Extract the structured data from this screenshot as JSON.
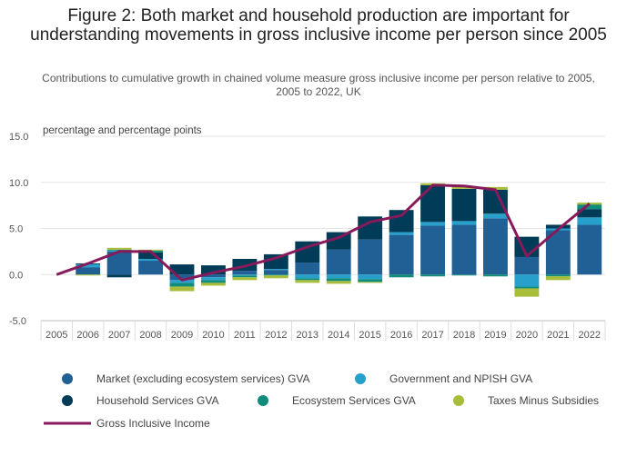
{
  "chart_data": {
    "type": "bar",
    "title": "Figure 2: Both market and household production are important for understanding movements in gross inclusive income per person since 2005",
    "subtitle": "Contributions to cumulative growth in chained volume measure gross inclusive income per person relative to 2005, 2005 to 2022, UK",
    "ylabel": "percentage and percentage points",
    "xlabel": "",
    "ylim": [
      -5,
      15
    ],
    "yticks": [
      "15.0",
      "10.0",
      "5.0",
      "0.0",
      "-5.0"
    ],
    "ytick_values": [
      15,
      10,
      5,
      0,
      -5
    ],
    "categories": [
      "2005",
      "2006",
      "2007",
      "2008",
      "2009",
      "2010",
      "2011",
      "2012",
      "2013",
      "2014",
      "2015",
      "2016",
      "2017",
      "2018",
      "2019",
      "2020",
      "2021",
      "2022"
    ],
    "stacked": true,
    "grid": true,
    "legend_position": "bottom",
    "series": [
      {
        "name": "Market (excluding ecosystem services) GVA",
        "kind": "bar",
        "color": "#206095",
        "values": [
          0,
          0.8,
          2.5,
          1.5,
          -0.6,
          -0.3,
          0.4,
          0.5,
          1.3,
          2.7,
          3.8,
          4.3,
          5.3,
          5.4,
          6.1,
          1.9,
          4.8,
          5.4
        ]
      },
      {
        "name": "Government and NPISH GVA",
        "kind": "bar",
        "color": "#27A0CC",
        "values": [
          0,
          0.3,
          0.1,
          0.2,
          -0.3,
          -0.3,
          -0.1,
          0.1,
          -0.4,
          -0.4,
          -0.5,
          0.3,
          0.4,
          0.4,
          0.5,
          -1.3,
          0.2,
          0.8
        ]
      },
      {
        "name": "Household Services GVA",
        "kind": "bar",
        "color": "#003C57",
        "values": [
          0,
          0.1,
          -0.3,
          0.7,
          1.1,
          1.0,
          1.3,
          1.6,
          2.3,
          1.9,
          2.5,
          2.4,
          4.0,
          3.5,
          2.6,
          2.2,
          0.4,
          0.9
        ]
      },
      {
        "name": "Ecosystem Services GVA",
        "kind": "bar",
        "color": "#118C7B",
        "values": [
          0,
          0,
          0.1,
          0.2,
          -0.4,
          -0.3,
          -0.2,
          -0.1,
          -0.2,
          -0.3,
          -0.3,
          -0.3,
          -0.2,
          -0.1,
          -0.2,
          -0.2,
          -0.2,
          0.5
        ]
      },
      {
        "name": "Taxes Minus Subsidies",
        "kind": "bar",
        "color": "#A8BD3A",
        "values": [
          0,
          -0.1,
          0.2,
          0.1,
          -0.5,
          -0.3,
          -0.3,
          -0.3,
          -0.3,
          -0.3,
          -0.1,
          0,
          0.2,
          0.3,
          0.3,
          -0.9,
          -0.4,
          0.2
        ]
      },
      {
        "name": "Gross Inclusive Income",
        "kind": "line",
        "color": "#871A5B",
        "values": [
          0,
          1.2,
          2.5,
          2.5,
          -0.6,
          0.2,
          0.9,
          1.8,
          3.0,
          4.0,
          5.7,
          6.4,
          9.7,
          9.6,
          9.2,
          2.0,
          4.9,
          7.7
        ]
      }
    ]
  }
}
